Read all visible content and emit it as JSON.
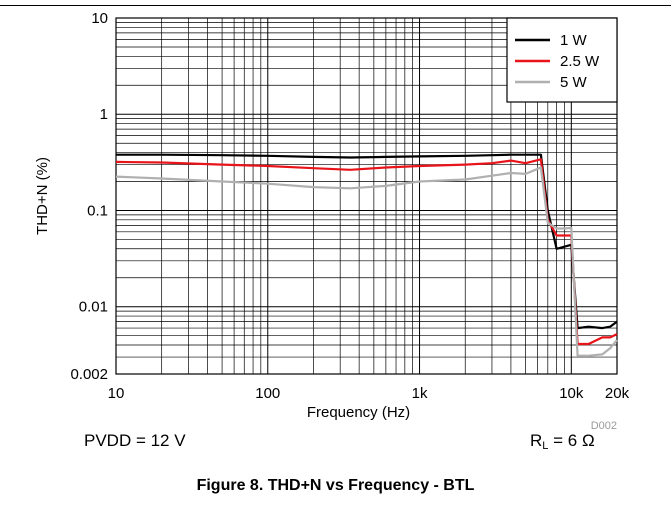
{
  "chart_data": {
    "type": "line",
    "xlabel": "Frequency (Hz)",
    "ylabel": "THD+N (%)",
    "x_scale": "log",
    "y_scale": "log",
    "xlim": [
      10,
      20000
    ],
    "ylim": [
      0.002,
      10
    ],
    "x_ticks": [
      {
        "value": 10,
        "label": "10"
      },
      {
        "value": 100,
        "label": "100"
      },
      {
        "value": 1000,
        "label": "1k"
      },
      {
        "value": 10000,
        "label": "10k"
      },
      {
        "value": 20000,
        "label": "20k"
      }
    ],
    "y_ticks": [
      {
        "value": 0.002,
        "label": "0.002"
      },
      {
        "value": 0.01,
        "label": "0.01"
      },
      {
        "value": 0.1,
        "label": "0.1"
      },
      {
        "value": 1,
        "label": "1"
      },
      {
        "value": 10,
        "label": "10"
      }
    ],
    "grid": true,
    "legend_position": "top-right",
    "code_label": "D002",
    "series": [
      {
        "name": "1 W",
        "color": "#000000",
        "points": [
          [
            10,
            0.38
          ],
          [
            20,
            0.38
          ],
          [
            50,
            0.375
          ],
          [
            100,
            0.37
          ],
          [
            200,
            0.36
          ],
          [
            350,
            0.355
          ],
          [
            600,
            0.36
          ],
          [
            1000,
            0.365
          ],
          [
            2000,
            0.37
          ],
          [
            3000,
            0.375
          ],
          [
            4000,
            0.38
          ],
          [
            5000,
            0.38
          ],
          [
            6300,
            0.38
          ],
          [
            7000,
            0.1
          ],
          [
            8000,
            0.04
          ],
          [
            9000,
            0.042
          ],
          [
            10000,
            0.044
          ],
          [
            11000,
            0.006
          ],
          [
            13000,
            0.0062
          ],
          [
            16000,
            0.006
          ],
          [
            18000,
            0.0062
          ],
          [
            20000,
            0.007
          ]
        ]
      },
      {
        "name": "2.5 W",
        "color": "#e8141a",
        "points": [
          [
            10,
            0.32
          ],
          [
            20,
            0.315
          ],
          [
            50,
            0.3
          ],
          [
            100,
            0.29
          ],
          [
            200,
            0.275
          ],
          [
            350,
            0.265
          ],
          [
            600,
            0.28
          ],
          [
            1000,
            0.29
          ],
          [
            2000,
            0.3
          ],
          [
            3000,
            0.31
          ],
          [
            4000,
            0.33
          ],
          [
            5000,
            0.31
          ],
          [
            6300,
            0.34
          ],
          [
            7000,
            0.08
          ],
          [
            8000,
            0.055
          ],
          [
            9000,
            0.055
          ],
          [
            10000,
            0.055
          ],
          [
            11000,
            0.0041
          ],
          [
            13000,
            0.0041
          ],
          [
            16000,
            0.0048
          ],
          [
            18000,
            0.0048
          ],
          [
            20000,
            0.0052
          ]
        ]
      },
      {
        "name": "5 W",
        "color": "#b0b0b0",
        "points": [
          [
            10,
            0.225
          ],
          [
            20,
            0.215
          ],
          [
            50,
            0.2
          ],
          [
            100,
            0.19
          ],
          [
            200,
            0.175
          ],
          [
            350,
            0.17
          ],
          [
            600,
            0.18
          ],
          [
            1000,
            0.2
          ],
          [
            2000,
            0.21
          ],
          [
            3000,
            0.23
          ],
          [
            4000,
            0.245
          ],
          [
            5000,
            0.24
          ],
          [
            6300,
            0.28
          ],
          [
            7000,
            0.075
          ],
          [
            8000,
            0.065
          ],
          [
            9000,
            0.065
          ],
          [
            10000,
            0.066
          ],
          [
            11000,
            0.0031
          ],
          [
            13000,
            0.0031
          ],
          [
            16000,
            0.0032
          ],
          [
            18000,
            0.0037
          ],
          [
            20000,
            0.0045
          ]
        ]
      }
    ]
  },
  "conditions": {
    "left": "PVDD = 12 V",
    "right_main": "R",
    "right_sub": "L",
    "right_rest": " = 6 Ω"
  },
  "caption": "Figure 8. THD+N vs Frequency - BTL"
}
